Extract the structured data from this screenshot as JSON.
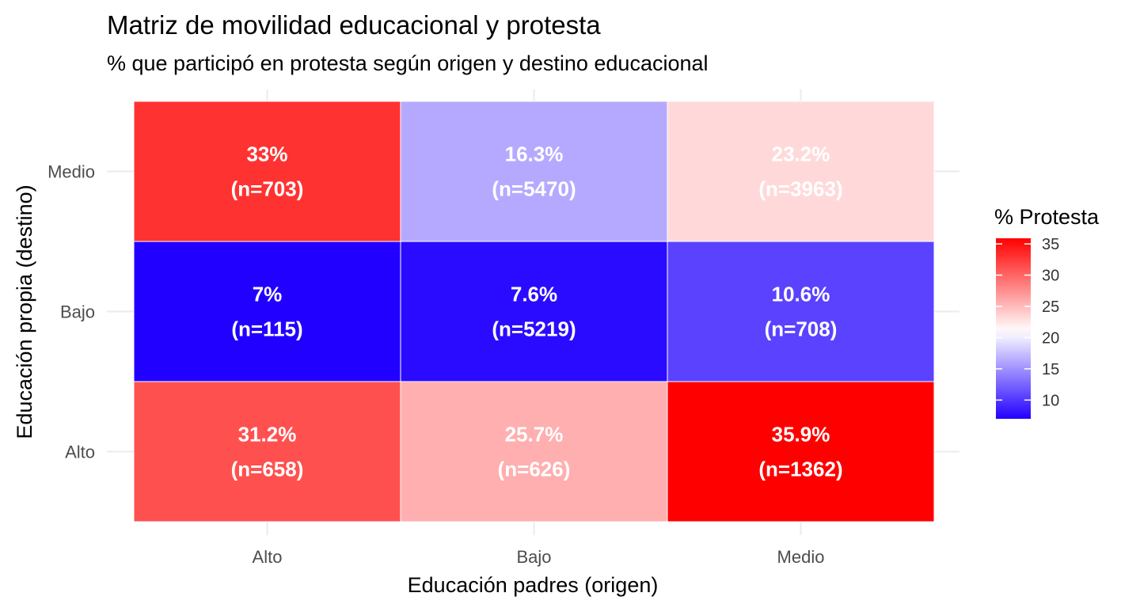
{
  "chart_data": {
    "type": "heatmap",
    "title": "Matriz de movilidad educacional y protesta",
    "subtitle": "% que participó en protesta según origen y destino educacional",
    "xlabel": "Educación padres (origen)",
    "ylabel": "Educación propia (destino)",
    "x_categories": [
      "Alto",
      "Bajo",
      "Medio"
    ],
    "y_categories": [
      "Alto",
      "Bajo",
      "Medio"
    ],
    "cells": [
      {
        "x": "Alto",
        "y": "Medio",
        "value": 33,
        "label": "33%",
        "n_label": "(n=703)"
      },
      {
        "x": "Bajo",
        "y": "Medio",
        "value": 16.3,
        "label": "16.3%",
        "n_label": "(n=5470)"
      },
      {
        "x": "Medio",
        "y": "Medio",
        "value": 23.2,
        "label": "23.2%",
        "n_label": "(n=3963)"
      },
      {
        "x": "Alto",
        "y": "Bajo",
        "value": 7,
        "label": "7%",
        "n_label": "(n=115)"
      },
      {
        "x": "Bajo",
        "y": "Bajo",
        "value": 7.6,
        "label": "7.6%",
        "n_label": "(n=5219)"
      },
      {
        "x": "Medio",
        "y": "Bajo",
        "value": 10.6,
        "label": "10.6%",
        "n_label": "(n=708)"
      },
      {
        "x": "Alto",
        "y": "Alto",
        "value": 31.2,
        "label": "31.2%",
        "n_label": "(n=658)"
      },
      {
        "x": "Bajo",
        "y": "Alto",
        "value": 25.7,
        "label": "25.7%",
        "n_label": "(n=626)"
      },
      {
        "x": "Medio",
        "y": "Alto",
        "value": 35.9,
        "label": "35.9%",
        "n_label": "(n=1362)"
      }
    ],
    "legend": {
      "title": "% Protesta",
      "position": "right",
      "min": 7,
      "max": 35.9,
      "midpoint": 21,
      "ticks": [
        10,
        15,
        20,
        25,
        30,
        35
      ],
      "colors": {
        "low": "#2200ff",
        "mid": "#ffffff",
        "high": "#ff0000"
      }
    },
    "grid": true
  }
}
